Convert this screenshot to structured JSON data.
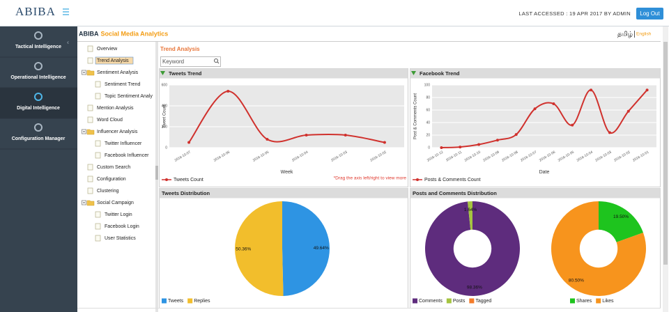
{
  "header": {
    "logo": "ABIBA",
    "last_accessed": "LAST ACCESSED : 19 APR 2017 BY ADMIN",
    "logout": "Log Out"
  },
  "app": {
    "brand": "ABIBA",
    "title": "Social Media Analytics",
    "languages": [
      "தமிழ்",
      "English"
    ]
  },
  "sidebar": [
    {
      "label": "Tactical Intelligence"
    },
    {
      "label": "Operational Intelligence"
    },
    {
      "label": "Digital Intelligence",
      "active": true
    },
    {
      "label": "Configuration Manager"
    }
  ],
  "tree": [
    {
      "label": "Overview"
    },
    {
      "label": "Trend Analysis",
      "selected": true
    },
    {
      "label": "Sentiment Analysis",
      "children": [
        {
          "label": "Sentiment Trend"
        },
        {
          "label": "Topic Sentiment Analy"
        }
      ]
    },
    {
      "label": "Mention Analysis"
    },
    {
      "label": "Word Cloud"
    },
    {
      "label": "Influencer Analysis",
      "children": [
        {
          "label": "Twitter Influencer"
        },
        {
          "label": "Facebook Influencer"
        }
      ]
    },
    {
      "label": "Custom Search"
    },
    {
      "label": "Configuration"
    },
    {
      "label": "Clustering"
    },
    {
      "label": "Social Campaign",
      "children": [
        {
          "label": "Twitter Login"
        },
        {
          "label": "Facebook Login"
        },
        {
          "label": "User Statistics"
        }
      ]
    }
  ],
  "page": {
    "title": "Trend Analysis",
    "search_placeholder": "Keyword"
  },
  "chart_data": [
    {
      "type": "line",
      "title": "Tweets Trend",
      "categories": [
        "2016-10-07",
        "2016-10-06",
        "2016-10-05",
        "2016-10-04",
        "2016-10-03",
        "2016-10-02"
      ],
      "series": [
        {
          "name": "Tweets Count",
          "color": "#d0312d",
          "values": [
            50,
            540,
            80,
            120,
            120,
            50
          ]
        }
      ],
      "ylim": [
        0,
        600
      ],
      "yticks": [
        0,
        200,
        400,
        600
      ],
      "ylabel": "Tweet Count",
      "xlabel": "Week",
      "note": "*Drag the axis left/right to view more",
      "grid": true
    },
    {
      "type": "line",
      "title": "Facebook Trend",
      "categories": [
        "2016-10-12",
        "2016-10-11",
        "2016-10-10",
        "2016-10-09",
        "2016-10-08",
        "2016-10-07",
        "2016-10-06",
        "2016-10-05",
        "2016-10-04",
        "2016-10-03",
        "2016-10-02",
        "2016-10-01"
      ],
      "series": [
        {
          "name": "Posts & Comments Count",
          "color": "#d0312d",
          "values": [
            0,
            1,
            5,
            12,
            21,
            62,
            70,
            36,
            92,
            24,
            58,
            92
          ]
        }
      ],
      "ylim": [
        0,
        100
      ],
      "yticks": [
        0,
        20,
        40,
        60,
        80,
        100
      ],
      "ylabel": "Post & Comments Count",
      "xlabel": "Date",
      "grid": true
    },
    {
      "type": "pie",
      "title": "Tweets Distribution",
      "categories": [
        "Tweets",
        "Replies"
      ],
      "values": [
        49.64,
        50.36
      ],
      "value_labels": [
        "49.64%",
        "50.36%"
      ],
      "colors": [
        "#2e94e3",
        "#f2be2c"
      ]
    },
    {
      "type": "donut",
      "title": "Posts and Comments Distribution",
      "categories": [
        "Comments",
        "Posts",
        "Tagged"
      ],
      "values": [
        98.36,
        1.64,
        0
      ],
      "value_labels": [
        "98.36%",
        "1.64%",
        null
      ],
      "colors": [
        "#5e2c7d",
        "#a5c440",
        "#f47c2a"
      ]
    },
    {
      "type": "donut",
      "categories": [
        "Shares",
        "Likes"
      ],
      "values": [
        19.5,
        80.5
      ],
      "value_labels": [
        "19.50%",
        "80.50%"
      ],
      "colors": [
        "#1ec41e",
        "#f7941d"
      ]
    }
  ]
}
